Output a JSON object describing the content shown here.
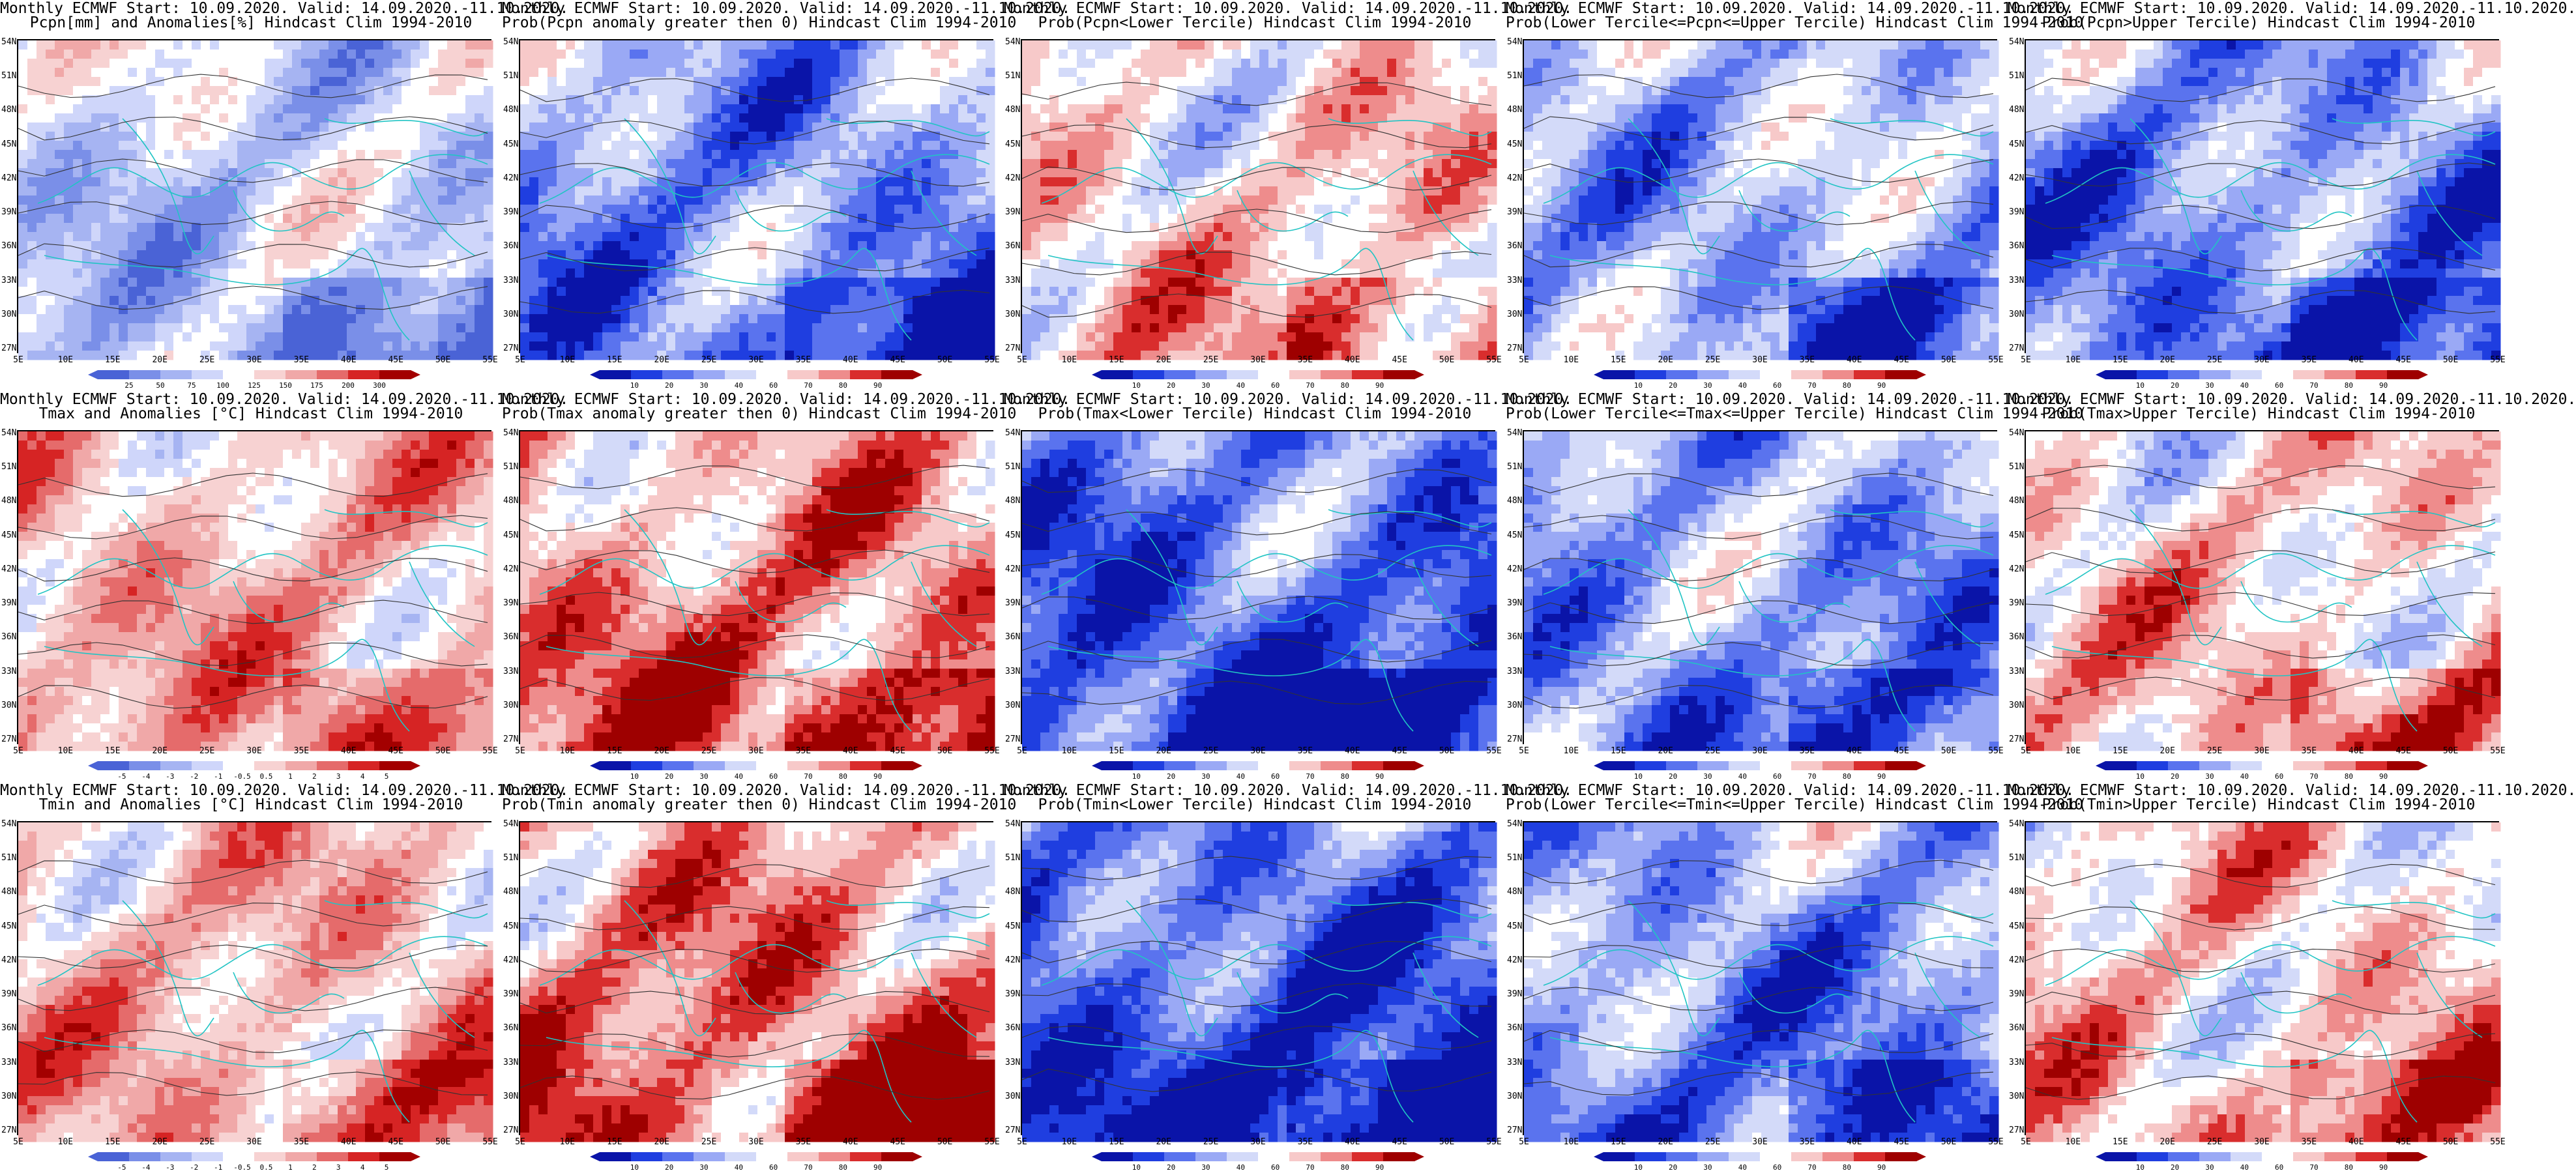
{
  "figure": {
    "lat_ticks": [
      "54N",
      "51N",
      "48N",
      "45N",
      "42N",
      "39N",
      "36N",
      "33N",
      "30N",
      "27N"
    ],
    "lon_ticks": [
      "5E",
      "10E",
      "15E",
      "20E",
      "25E",
      "30E",
      "35E",
      "40E",
      "45E",
      "50E",
      "55E"
    ],
    "colors": {
      "anomaly_scale": [
        "#4a63d6",
        "#7a8fe8",
        "#a6b4f2",
        "#cfd6fa",
        "#ffffff",
        "#f7d2d2",
        "#f0a8a8",
        "#e56b6b",
        "#d62424",
        "#a30000"
      ],
      "prob_scale": [
        "#0a14a8",
        "#1f3ee0",
        "#5a73ee",
        "#9aa9f5",
        "#d3daf9",
        "#ffffff",
        "#f7c9c9",
        "#ee8c8c",
        "#d92d2d",
        "#9e0000"
      ],
      "contour": "#333333",
      "coast": "#21c4c4"
    },
    "panels": [
      {
        "id": "precip-amount",
        "title1": "Monthly ECMWF Start: 10.09.2020. Valid: 14.09.2020.-11.10.2020.",
        "title2": "Pcpn[mm] and Anomalies[%] Hindcast Clim 1994-2010",
        "scale": "anomaly",
        "bias": -0.5,
        "cbar_ticks": [
          "25",
          "50",
          "75",
          "100",
          "125",
          "150",
          "175",
          "200",
          "300"
        ]
      },
      {
        "id": "precip-prob-positive",
        "title1": "Monthly ECMWF Start: 10.09.2020. Valid: 14.09.2020.-11.10.2020.",
        "title2": "Prob(Pcpn anomaly greater then 0) Hindcast Clim 1994-2010",
        "scale": "prob",
        "bias": -0.55,
        "cbar_ticks": [
          "10",
          "20",
          "30",
          "40",
          "60",
          "70",
          "80",
          "90"
        ]
      },
      {
        "id": "precip-prob-lower",
        "title1": "Monthly ECMWF Start: 10.09.2020. Valid: 14.09.2020.-11.10.2020.",
        "title2": "Prob(Pcpn<Lower Tercile) Hindcast Clim 1994-2010",
        "scale": "prob",
        "bias": 0.35,
        "cbar_ticks": [
          "10",
          "20",
          "30",
          "40",
          "60",
          "70",
          "80",
          "90"
        ]
      },
      {
        "id": "precip-prob-middle",
        "title1": "Monthly ECMWF Start: 10.09.2020. Valid: 14.09.2020.-11.10.2020.",
        "title2": "Prob(Lower Tercile<=Pcpn<=Upper Tercile) Hindcast Clim 1994-2010",
        "scale": "prob",
        "bias": -0.35,
        "cbar_ticks": [
          "10",
          "20",
          "30",
          "40",
          "60",
          "70",
          "80",
          "90"
        ]
      },
      {
        "id": "precip-prob-upper",
        "title1": "Monthly ECMWF Start: 10.09.2020. Valid: 14.09.2020.-11.10.2020.",
        "title2": "Prob(Pcpn>Upper Tercile) Hindcast Clim 1994-2010",
        "scale": "prob",
        "bias": -0.6,
        "cbar_ticks": [
          "10",
          "20",
          "30",
          "40",
          "60",
          "70",
          "80",
          "90"
        ]
      },
      {
        "id": "tmax-anomaly",
        "title1": "Monthly ECMWF Start: 10.09.2020. Valid: 14.09.2020.-11.10.2020.",
        "title2": "Tmax and Anomalies [°C] Hindcast Clim 1994-2010",
        "scale": "anomaly",
        "bias": 0.3,
        "cbar_ticks": [
          "-5",
          "-4",
          "-3",
          "-2",
          "-1",
          "-0.5",
          "0.5",
          "1",
          "2",
          "3",
          "4",
          "5"
        ]
      },
      {
        "id": "tmax-prob-positive",
        "title1": "Monthly ECMWF Start: 10.09.2020. Valid: 14.09.2020.-11.10.2020.",
        "title2": "Prob(Tmax anomaly greater then 0) Hindcast Clim 1994-2010",
        "scale": "prob",
        "bias": 0.7,
        "cbar_ticks": [
          "10",
          "20",
          "30",
          "40",
          "60",
          "70",
          "80",
          "90"
        ]
      },
      {
        "id": "tmax-prob-lower",
        "title1": "Monthly ECMWF Start: 10.09.2020. Valid: 14.09.2020.-11.10.2020.",
        "title2": "Prob(Tmax<Lower Tercile) Hindcast Clim 1994-2010",
        "scale": "prob",
        "bias": -0.85,
        "cbar_ticks": [
          "10",
          "20",
          "30",
          "40",
          "60",
          "70",
          "80",
          "90"
        ]
      },
      {
        "id": "tmax-prob-middle",
        "title1": "Monthly ECMWF Start: 10.09.2020. Valid: 14.09.2020.-11.10.2020.",
        "title2": "Prob(Lower Tercile<=Tmax<=Upper Tercile) Hindcast Clim 1994-2010",
        "scale": "prob",
        "bias": -0.5,
        "cbar_ticks": [
          "10",
          "20",
          "30",
          "40",
          "60",
          "70",
          "80",
          "90"
        ]
      },
      {
        "id": "tmax-prob-upper",
        "title1": "Monthly ECMWF Start: 10.09.2020. Valid: 14.09.2020.-11.10.2020.",
        "title2": "Prob(Tmax>Upper Tercile) Hindcast Clim 1994-2010",
        "scale": "prob",
        "bias": 0.35,
        "cbar_ticks": [
          "10",
          "20",
          "30",
          "40",
          "60",
          "70",
          "80",
          "90"
        ]
      },
      {
        "id": "tmin-anomaly",
        "title1": "Monthly ECMWF Start: 10.09.2020. Valid: 14.09.2020.-11.10.2020.",
        "title2": "Tmin and Anomalies [°C] Hindcast Clim 1994-2010",
        "scale": "anomaly",
        "bias": 0.3,
        "cbar_ticks": [
          "-5",
          "-4",
          "-3",
          "-2",
          "-1",
          "-0.5",
          "0.5",
          "1",
          "2",
          "3",
          "4",
          "5"
        ]
      },
      {
        "id": "tmin-prob-positive",
        "title1": "Monthly ECMWF Start: 10.09.2020. Valid: 14.09.2020.-11.10.2020.",
        "title2": "Prob(Tmin anomaly greater then 0) Hindcast Clim 1994-2010",
        "scale": "prob",
        "bias": 0.75,
        "cbar_ticks": [
          "10",
          "20",
          "30",
          "40",
          "60",
          "70",
          "80",
          "90"
        ]
      },
      {
        "id": "tmin-prob-lower",
        "title1": "Monthly ECMWF Start: 10.09.2020. Valid: 14.09.2020.-11.10.2020.",
        "title2": "Prob(Tmin<Lower Tercile) Hindcast Clim 1994-2010",
        "scale": "prob",
        "bias": -0.9,
        "cbar_ticks": [
          "10",
          "20",
          "30",
          "40",
          "60",
          "70",
          "80",
          "90"
        ]
      },
      {
        "id": "tmin-prob-middle",
        "title1": "Monthly ECMWF Start: 10.09.2020. Valid: 14.09.2020.-11.10.2020.",
        "title2": "Prob(Lower Tercile<=Tmin<=Upper Tercile) Hindcast Clim 1994-2010",
        "scale": "prob",
        "bias": -0.55,
        "cbar_ticks": [
          "10",
          "20",
          "30",
          "40",
          "60",
          "70",
          "80",
          "90"
        ]
      },
      {
        "id": "tmin-prob-upper",
        "title1": "Monthly ECMWF Start: 10.09.2020. Valid: 14.09.2020.-11.10.2020.",
        "title2": "Prob(Tmin>Upper Tercile) Hindcast Clim 1994-2010",
        "scale": "prob",
        "bias": 0.4,
        "cbar_ticks": [
          "10",
          "20",
          "30",
          "40",
          "60",
          "70",
          "80",
          "90"
        ]
      }
    ]
  }
}
